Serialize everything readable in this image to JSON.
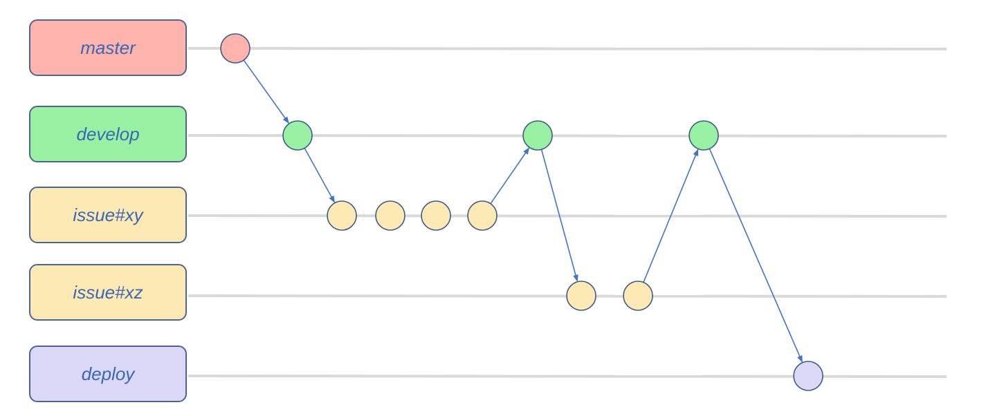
{
  "branches": [
    {
      "id": "master",
      "label": "master",
      "fill": "#ffb3ad"
    },
    {
      "id": "develop",
      "label": "develop",
      "fill": "#99f2a4"
    },
    {
      "id": "issuexy",
      "label": "issue#xy",
      "fill": "#fde9b3"
    },
    {
      "id": "issuexz",
      "label": "issue#xz",
      "fill": "#fde9b3"
    },
    {
      "id": "deploy",
      "label": "deploy",
      "fill": "#dcd8f8"
    }
  ],
  "colors": {
    "lane_line": "#d9d9d9",
    "box_border": "#4a6690",
    "label_text": "#3a67b5",
    "arrow": "#4472c4",
    "commit_stroke": "#3a5a8a"
  },
  "commits": [
    {
      "id": "m1",
      "branch": "master",
      "seq": 1
    },
    {
      "id": "d1",
      "branch": "develop",
      "seq": 2
    },
    {
      "id": "x1",
      "branch": "issuexy",
      "seq": 3
    },
    {
      "id": "x2",
      "branch": "issuexy",
      "seq": 4
    },
    {
      "id": "x3",
      "branch": "issuexy",
      "seq": 5
    },
    {
      "id": "x4",
      "branch": "issuexy",
      "seq": 6
    },
    {
      "id": "d2",
      "branch": "develop",
      "seq": 7
    },
    {
      "id": "z1",
      "branch": "issuexz",
      "seq": 8
    },
    {
      "id": "z2",
      "branch": "issuexz",
      "seq": 9
    },
    {
      "id": "d3",
      "branch": "develop",
      "seq": 10
    },
    {
      "id": "p1",
      "branch": "deploy",
      "seq": 11
    }
  ],
  "arrows": [
    {
      "from": "m1",
      "to": "d1"
    },
    {
      "from": "d1",
      "to": "x1"
    },
    {
      "from": "x4",
      "to": "d2"
    },
    {
      "from": "d2",
      "to": "z1"
    },
    {
      "from": "z2",
      "to": "d3"
    },
    {
      "from": "d3",
      "to": "p1"
    }
  ]
}
